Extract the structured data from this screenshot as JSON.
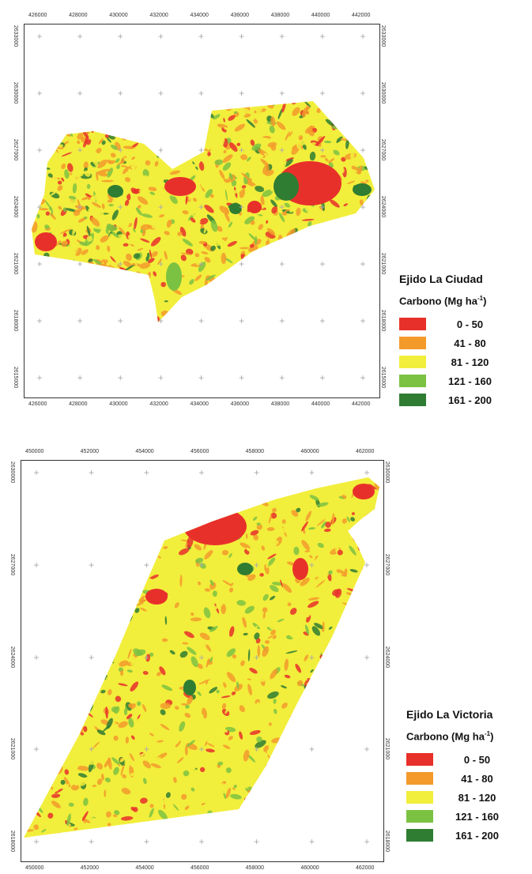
{
  "maps": [
    {
      "legend_title": "Ejido La Ciudad",
      "legend_subtitle": "Carbono (Mg ha",
      "legend_sup": "-1",
      "legend_close": ")",
      "x_ticks": [
        "426000",
        "428000",
        "430000",
        "432000",
        "434000",
        "436000",
        "438000",
        "440000",
        "442000"
      ],
      "y_ticks": [
        "2633000",
        "2630000",
        "2627000",
        "2624000",
        "2621000",
        "2618000",
        "2615000"
      ]
    },
    {
      "legend_title": "Ejido La Victoria",
      "legend_subtitle": "Carbono (Mg ha",
      "legend_sup": "-1",
      "legend_close": ")",
      "x_ticks": [
        "450000",
        "452000",
        "454000",
        "456000",
        "458000",
        "460000",
        "462000"
      ],
      "y_ticks": [
        "2630000",
        "2627000",
        "2624000",
        "2621000",
        "2618000"
      ]
    }
  ],
  "classes": [
    {
      "label": "0 - 50",
      "color": "#e8302a"
    },
    {
      "label": "41 - 80",
      "color": "#f39a2b"
    },
    {
      "label": "81 - 120",
      "color": "#f2ee3c"
    },
    {
      "label": "121 - 160",
      "color": "#7cc242"
    },
    {
      "label": "161 - 200",
      "color": "#2f7d32"
    }
  ]
}
